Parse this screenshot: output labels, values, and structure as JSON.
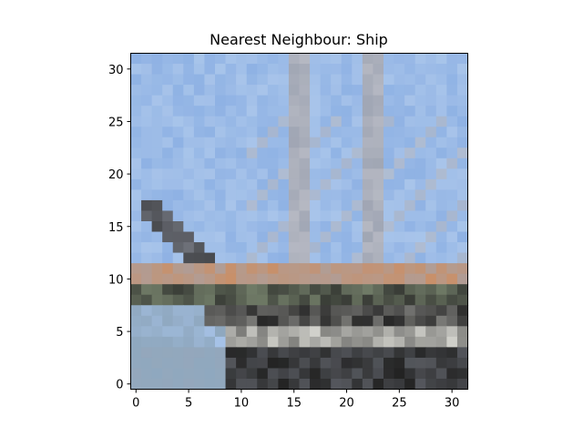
{
  "chart_data": {
    "type": "heatmap",
    "title": "Nearest Neighbour: Ship",
    "xlabel": "",
    "ylabel": "",
    "grid": false,
    "xlim": [
      -0.5,
      31.5
    ],
    "ylim": [
      31.5,
      -0.5
    ],
    "xticks": [
      0,
      5,
      10,
      15,
      20,
      25,
      30
    ],
    "yticks": [
      0,
      5,
      10,
      15,
      20,
      25,
      30
    ],
    "image": {
      "rows": 32,
      "cols": 32,
      "palette": {
        "sky": "#8fb2e4",
        "sky_light": "#a8c4ea",
        "mast": "#a0a6b4",
        "rope": "#b5b8c2",
        "hull_brown": "#c8906a",
        "hull_dark": "#232323",
        "hull_light": "#d2d2cc",
        "green_gray": "#6f7a66",
        "water": "#8fa8bf"
      },
      "pixels": []
    }
  }
}
